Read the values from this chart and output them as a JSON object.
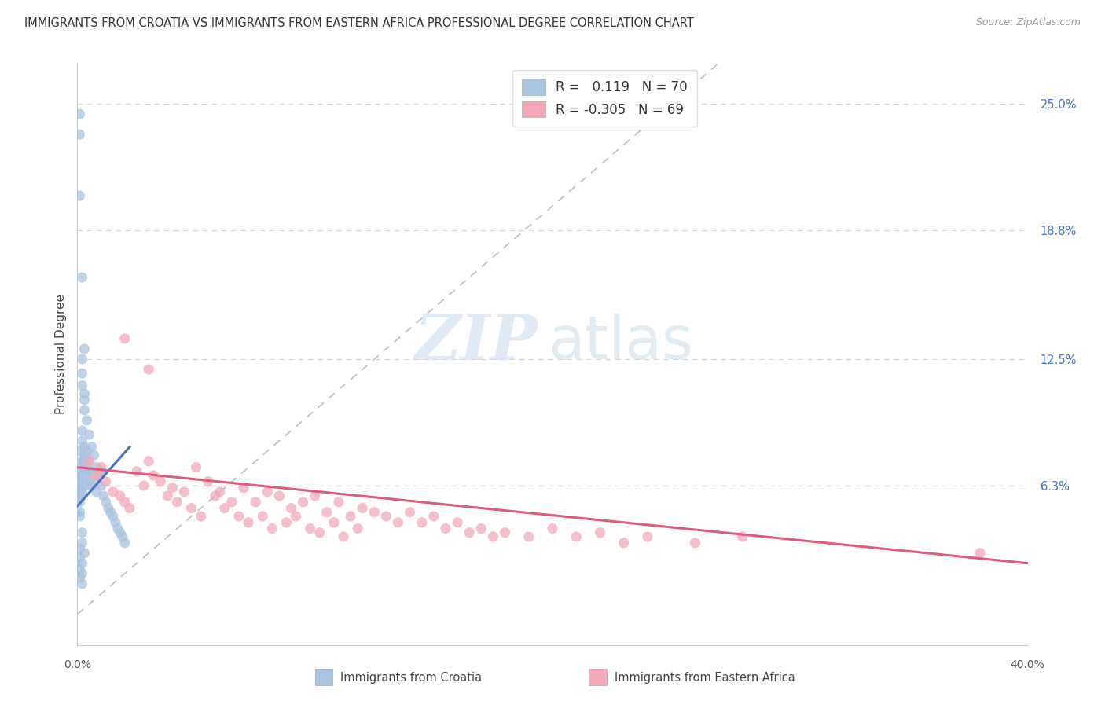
{
  "title": "IMMIGRANTS FROM CROATIA VS IMMIGRANTS FROM EASTERN AFRICA PROFESSIONAL DEGREE CORRELATION CHART",
  "source": "Source: ZipAtlas.com",
  "ylabel": "Professional Degree",
  "ytick_labels": [
    "25.0%",
    "18.8%",
    "12.5%",
    "6.3%"
  ],
  "ytick_positions": [
    0.25,
    0.188,
    0.125,
    0.063
  ],
  "xlim": [
    0.0,
    0.4
  ],
  "ylim": [
    -0.015,
    0.27
  ],
  "color_blue": "#a8c4e0",
  "color_pink": "#f4a7b9",
  "trendline_blue": "#4472c4",
  "trendline_pink": "#e05a7a",
  "diagonal_color": "#b0b8c8",
  "croatia_x": [
    0.001,
    0.001,
    0.001,
    0.001,
    0.001,
    0.001,
    0.001,
    0.001,
    0.001,
    0.001,
    0.001,
    0.002,
    0.002,
    0.002,
    0.002,
    0.002,
    0.002,
    0.002,
    0.002,
    0.002,
    0.002,
    0.002,
    0.002,
    0.003,
    0.003,
    0.003,
    0.003,
    0.003,
    0.003,
    0.003,
    0.003,
    0.004,
    0.004,
    0.004,
    0.004,
    0.004,
    0.005,
    0.005,
    0.005,
    0.005,
    0.006,
    0.006,
    0.006,
    0.007,
    0.007,
    0.008,
    0.008,
    0.009,
    0.01,
    0.01,
    0.011,
    0.012,
    0.013,
    0.014,
    0.015,
    0.016,
    0.017,
    0.018,
    0.019,
    0.02,
    0.002,
    0.002,
    0.001,
    0.001,
    0.003,
    0.002,
    0.001,
    0.002,
    0.001,
    0.002
  ],
  "croatia_y": [
    0.245,
    0.235,
    0.205,
    0.08,
    0.07,
    0.065,
    0.06,
    0.058,
    0.055,
    0.05,
    0.048,
    0.165,
    0.125,
    0.118,
    0.112,
    0.09,
    0.085,
    0.075,
    0.072,
    0.068,
    0.065,
    0.062,
    0.06,
    0.13,
    0.108,
    0.105,
    0.1,
    0.082,
    0.078,
    0.076,
    0.074,
    0.095,
    0.08,
    0.072,
    0.068,
    0.063,
    0.088,
    0.075,
    0.07,
    0.065,
    0.082,
    0.07,
    0.063,
    0.078,
    0.065,
    0.072,
    0.06,
    0.068,
    0.07,
    0.063,
    0.058,
    0.055,
    0.052,
    0.05,
    0.048,
    0.045,
    0.042,
    0.04,
    0.038,
    0.035,
    0.04,
    0.035,
    0.032,
    0.028,
    0.03,
    0.025,
    0.022,
    0.02,
    0.018,
    0.015
  ],
  "eastern_africa_x": [
    0.005,
    0.008,
    0.01,
    0.012,
    0.015,
    0.018,
    0.02,
    0.022,
    0.025,
    0.028,
    0.03,
    0.032,
    0.035,
    0.038,
    0.04,
    0.042,
    0.045,
    0.048,
    0.05,
    0.052,
    0.055,
    0.058,
    0.06,
    0.062,
    0.065,
    0.068,
    0.07,
    0.072,
    0.075,
    0.078,
    0.08,
    0.082,
    0.085,
    0.088,
    0.09,
    0.092,
    0.095,
    0.098,
    0.1,
    0.102,
    0.105,
    0.108,
    0.11,
    0.112,
    0.115,
    0.118,
    0.12,
    0.125,
    0.13,
    0.135,
    0.14,
    0.145,
    0.15,
    0.155,
    0.16,
    0.165,
    0.17,
    0.175,
    0.18,
    0.19,
    0.2,
    0.21,
    0.22,
    0.23,
    0.24,
    0.26,
    0.28,
    0.38,
    0.02,
    0.03
  ],
  "eastern_africa_y": [
    0.075,
    0.068,
    0.072,
    0.065,
    0.06,
    0.058,
    0.055,
    0.052,
    0.07,
    0.063,
    0.075,
    0.068,
    0.065,
    0.058,
    0.062,
    0.055,
    0.06,
    0.052,
    0.072,
    0.048,
    0.065,
    0.058,
    0.06,
    0.052,
    0.055,
    0.048,
    0.062,
    0.045,
    0.055,
    0.048,
    0.06,
    0.042,
    0.058,
    0.045,
    0.052,
    0.048,
    0.055,
    0.042,
    0.058,
    0.04,
    0.05,
    0.045,
    0.055,
    0.038,
    0.048,
    0.042,
    0.052,
    0.05,
    0.048,
    0.045,
    0.05,
    0.045,
    0.048,
    0.042,
    0.045,
    0.04,
    0.042,
    0.038,
    0.04,
    0.038,
    0.042,
    0.038,
    0.04,
    0.035,
    0.038,
    0.035,
    0.038,
    0.03,
    0.135,
    0.12
  ]
}
